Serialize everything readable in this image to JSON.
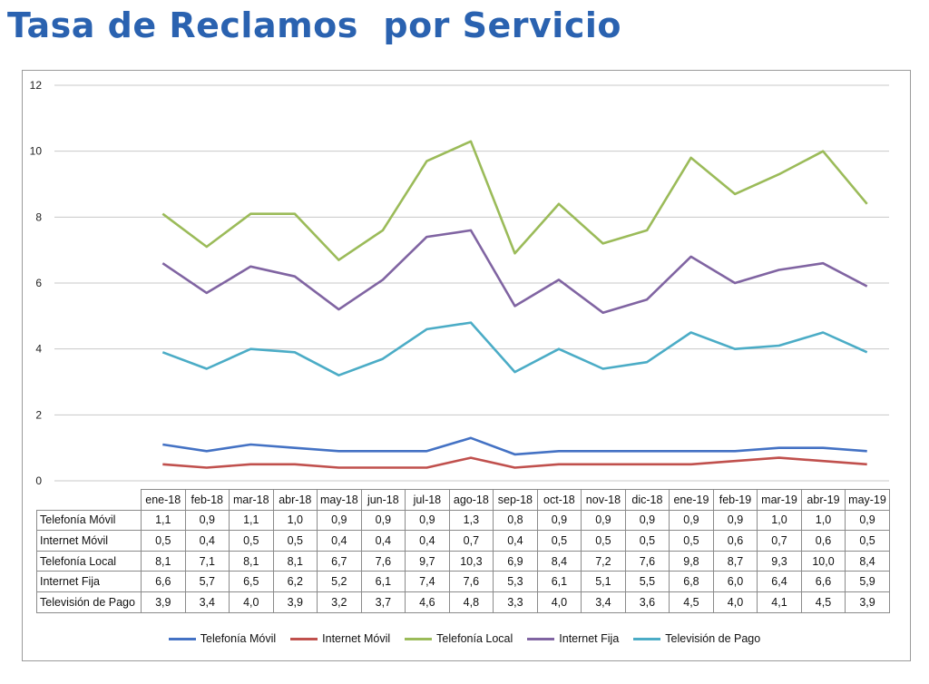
{
  "page": {
    "title": "Tasa de Reclamos  por Servicio"
  },
  "colors": {
    "title": "#2a62b0",
    "series": [
      "#4472c4",
      "#c0504d",
      "#9bbb59",
      "#8064a2",
      "#4bacc6"
    ],
    "grid": "#c8c8c8"
  },
  "chart_data": {
    "type": "line",
    "title": "",
    "xlabel": "",
    "ylabel": "",
    "ylim": [
      0,
      12
    ],
    "yticks": [
      0,
      2,
      4,
      6,
      8,
      10,
      12
    ],
    "grid": true,
    "legend_position": "bottom",
    "categories": [
      "ene-18",
      "feb-18",
      "mar-18",
      "abr-18",
      "may-18",
      "jun-18",
      "jul-18",
      "ago-18",
      "sep-18",
      "oct-18",
      "nov-18",
      "dic-18",
      "ene-19",
      "feb-19",
      "mar-19",
      "abr-19",
      "may-19"
    ],
    "series": [
      {
        "name": "Telefonía Móvil",
        "values": [
          1.1,
          0.9,
          1.1,
          1.0,
          0.9,
          0.9,
          0.9,
          1.3,
          0.8,
          0.9,
          0.9,
          0.9,
          0.9,
          0.9,
          1.0,
          1.0,
          0.9
        ]
      },
      {
        "name": "Internet Móvil",
        "values": [
          0.5,
          0.4,
          0.5,
          0.5,
          0.4,
          0.4,
          0.4,
          0.7,
          0.4,
          0.5,
          0.5,
          0.5,
          0.5,
          0.6,
          0.7,
          0.6,
          0.5
        ]
      },
      {
        "name": "Telefonía Local",
        "values": [
          8.1,
          7.1,
          8.1,
          8.1,
          6.7,
          7.6,
          9.7,
          10.3,
          6.9,
          8.4,
          7.2,
          7.6,
          9.8,
          8.7,
          9.3,
          10.0,
          8.4
        ]
      },
      {
        "name": "Internet Fija",
        "values": [
          6.6,
          5.7,
          6.5,
          6.2,
          5.2,
          6.1,
          7.4,
          7.6,
          5.3,
          6.1,
          5.1,
          5.5,
          6.8,
          6.0,
          6.4,
          6.6,
          5.9
        ]
      },
      {
        "name": "Televisión de Pago",
        "values": [
          3.9,
          3.4,
          4.0,
          3.9,
          3.2,
          3.7,
          4.6,
          4.8,
          3.3,
          4.0,
          3.4,
          3.6,
          4.5,
          4.0,
          4.1,
          4.5,
          3.9
        ]
      }
    ],
    "table_values": [
      {
        "label": "Telefonía Móvil",
        "values": [
          "1,1",
          "0,9",
          "1,1",
          "1,0",
          "0,9",
          "0,9",
          "0,9",
          "1,3",
          "0,8",
          "0,9",
          "0,9",
          "0,9",
          "0,9",
          "0,9",
          "1,0",
          "1,0",
          "0,9"
        ]
      },
      {
        "label": "Internet Móvil",
        "values": [
          "0,5",
          "0,4",
          "0,5",
          "0,5",
          "0,4",
          "0,4",
          "0,4",
          "0,7",
          "0,4",
          "0,5",
          "0,5",
          "0,5",
          "0,5",
          "0,6",
          "0,7",
          "0,6",
          "0,5"
        ]
      },
      {
        "label": "Telefonía Local",
        "values": [
          "8,1",
          "7,1",
          "8,1",
          "8,1",
          "6,7",
          "7,6",
          "9,7",
          "10,3",
          "6,9",
          "8,4",
          "7,2",
          "7,6",
          "9,8",
          "8,7",
          "9,3",
          "10,0",
          "8,4"
        ]
      },
      {
        "label": "Internet Fija",
        "values": [
          "6,6",
          "5,7",
          "6,5",
          "6,2",
          "5,2",
          "6,1",
          "7,4",
          "7,6",
          "5,3",
          "6,1",
          "5,1",
          "5,5",
          "6,8",
          "6,0",
          "6,4",
          "6,6",
          "5,9"
        ]
      },
      {
        "label": "Televisión de Pago",
        "values": [
          "3,9",
          "3,4",
          "4,0",
          "3,9",
          "3,2",
          "3,7",
          "4,6",
          "4,8",
          "3,3",
          "4,0",
          "3,4",
          "3,6",
          "4,5",
          "4,0",
          "4,1",
          "4,5",
          "3,9"
        ]
      }
    ]
  }
}
